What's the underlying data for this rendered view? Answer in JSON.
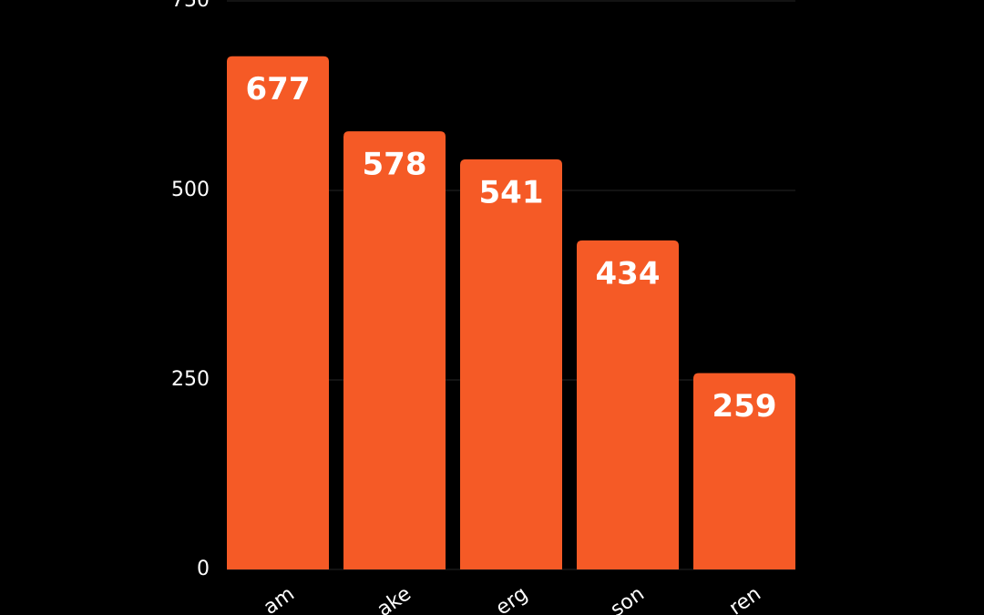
{
  "chart_data": {
    "type": "bar",
    "categories": [
      "am",
      "ake",
      "erg",
      "son",
      "ren"
    ],
    "values": [
      677,
      578,
      541,
      434,
      259
    ],
    "color": "#f55a26",
    "ylim": [
      0,
      750
    ],
    "yticks": [
      0,
      250,
      500,
      750
    ],
    "grid": true
  }
}
